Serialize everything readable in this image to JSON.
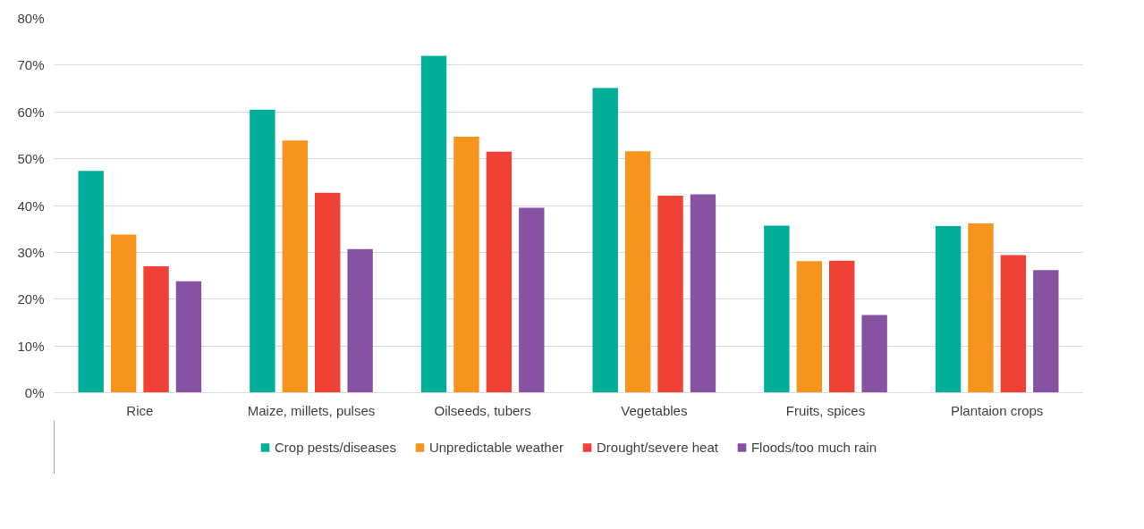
{
  "chart_data": {
    "type": "bar",
    "categories": [
      "Rice",
      "Maize, millets, pulses",
      "Oilseeds, tubers",
      "Vegetables",
      "Fruits, spices",
      "Plantaion crops"
    ],
    "series": [
      {
        "name": "Crop pests/diseases",
        "color": "#00ae9a",
        "values": [
          47.4,
          60.5,
          72.0,
          65.1,
          35.7,
          35.6
        ]
      },
      {
        "name": "Unpredictable weather",
        "color": "#f7941d",
        "values": [
          33.8,
          53.9,
          54.7,
          51.6,
          28.1,
          36.2
        ]
      },
      {
        "name": "Drought/severe heat",
        "color": "#ef4136",
        "values": [
          27.0,
          42.7,
          51.5,
          42.1,
          28.2,
          29.4
        ]
      },
      {
        "name": "Floods/too much rain",
        "color": "#8752a1",
        "values": [
          23.8,
          30.7,
          39.5,
          42.4,
          16.6,
          26.2
        ]
      }
    ],
    "ylim": [
      0,
      80
    ],
    "yticks": [
      {
        "value": 0,
        "label": "0%"
      },
      {
        "value": 10,
        "label": "10%"
      },
      {
        "value": 20,
        "label": "20%"
      },
      {
        "value": 30,
        "label": "30%"
      },
      {
        "value": 40,
        "label": "40%"
      },
      {
        "value": 50,
        "label": "50%"
      },
      {
        "value": 60,
        "label": "60%"
      },
      {
        "value": 70,
        "label": "70%"
      },
      {
        "value": 80,
        "label": "80%"
      }
    ],
    "grid": "y",
    "legend": "bottom"
  }
}
